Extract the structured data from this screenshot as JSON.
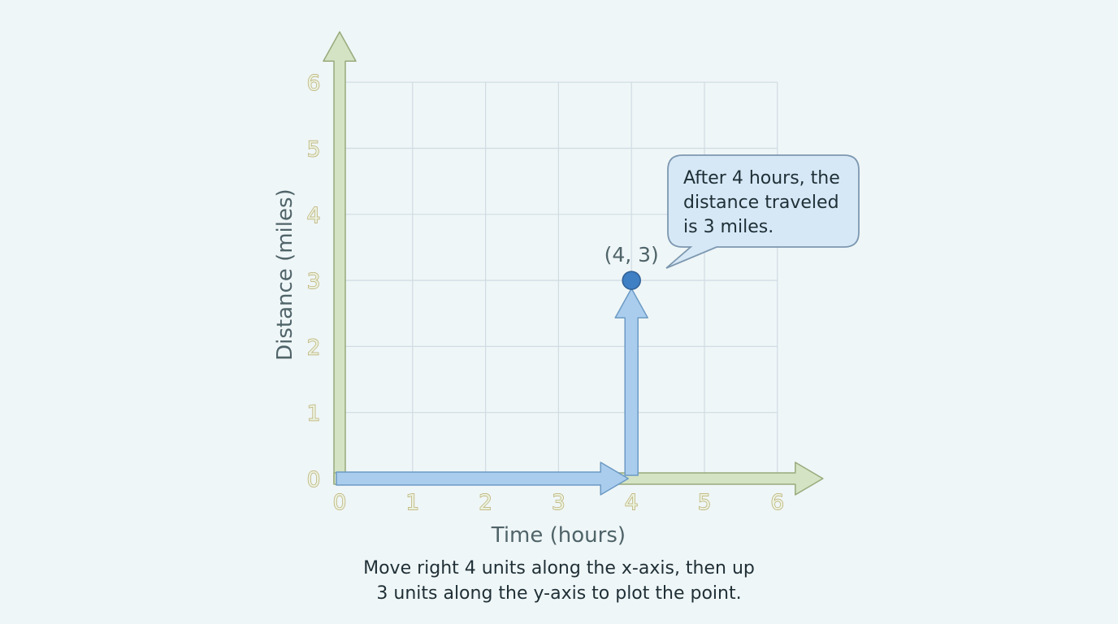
{
  "chart_data": {
    "type": "scatter",
    "xlabel": "Time (hours)",
    "ylabel": "Distance (miles)",
    "xlim": [
      0,
      6
    ],
    "ylim": [
      0,
      6
    ],
    "x_ticks": [
      "0",
      "1",
      "2",
      "3",
      "4",
      "5",
      "6"
    ],
    "y_ticks": [
      "0",
      "1",
      "2",
      "3",
      "4",
      "5",
      "6"
    ],
    "grid": true,
    "points": [
      {
        "x": 4,
        "y": 3,
        "label": "(4, 3)"
      }
    ],
    "path_arrows": [
      {
        "from": [
          0,
          0
        ],
        "to": [
          4,
          0
        ]
      },
      {
        "from": [
          4,
          0
        ],
        "to": [
          4,
          3
        ]
      }
    ],
    "annotation": {
      "lines": [
        "After 4 hours, the",
        "distance traveled",
        "is 3 miles."
      ]
    },
    "colors": {
      "axis_arrow_fill": "#d4e3c3",
      "axis_arrow_stroke": "#97aa7c",
      "path_arrow_fill": "#aacdee",
      "path_arrow_stroke": "#6c9ac4",
      "point_fill": "#3f7fc4",
      "grid": "#cfdbe3",
      "callout_fill": "#d6e8f6",
      "callout_stroke": "#7d98b0"
    }
  },
  "caption": {
    "line1": "Move right 4 units along the x-axis, then up",
    "line2": "3 units along the y-axis to plot the point."
  }
}
